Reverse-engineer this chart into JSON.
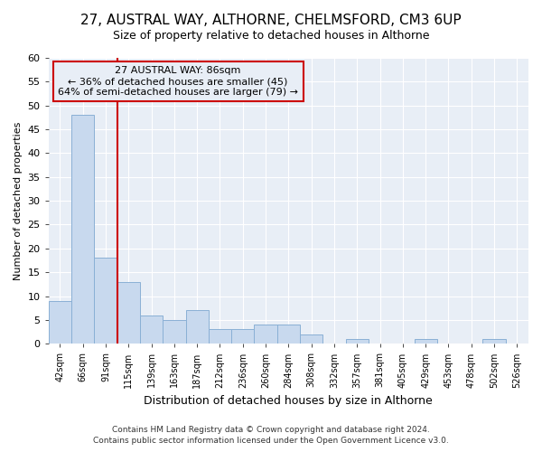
{
  "title1": "27, AUSTRAL WAY, ALTHORNE, CHELMSFORD, CM3 6UP",
  "title2": "Size of property relative to detached houses in Althorne",
  "xlabel": "Distribution of detached houses by size in Althorne",
  "ylabel": "Number of detached properties",
  "footer1": "Contains HM Land Registry data © Crown copyright and database right 2024.",
  "footer2": "Contains public sector information licensed under the Open Government Licence v3.0.",
  "annotation_line1": "27 AUSTRAL WAY: 86sqm",
  "annotation_line2": "← 36% of detached houses are smaller (45)",
  "annotation_line3": "64% of semi-detached houses are larger (79) →",
  "bar_color": "#c8d9ee",
  "bar_edge_color": "#8ab0d5",
  "vline_color": "#cc0000",
  "annotation_box_edgecolor": "#cc0000",
  "background_color": "#ffffff",
  "plot_bg_color": "#e8eef6",
  "grid_color": "#ffffff",
  "categories": [
    "42sqm",
    "66sqm",
    "91sqm",
    "115sqm",
    "139sqm",
    "163sqm",
    "187sqm",
    "212sqm",
    "236sqm",
    "260sqm",
    "284sqm",
    "308sqm",
    "332sqm",
    "357sqm",
    "381sqm",
    "405sqm",
    "429sqm",
    "453sqm",
    "478sqm",
    "502sqm",
    "526sqm"
  ],
  "values": [
    9,
    48,
    18,
    13,
    6,
    5,
    7,
    3,
    3,
    4,
    4,
    2,
    0,
    1,
    0,
    0,
    1,
    0,
    0,
    1,
    0
  ],
  "ylim": [
    0,
    60
  ],
  "yticks": [
    0,
    5,
    10,
    15,
    20,
    25,
    30,
    35,
    40,
    45,
    50,
    55,
    60
  ],
  "vline_x_index": 2,
  "title1_fontsize": 11,
  "title2_fontsize": 9,
  "footer_fontsize": 6.5,
  "ylabel_fontsize": 8,
  "xlabel_fontsize": 9
}
